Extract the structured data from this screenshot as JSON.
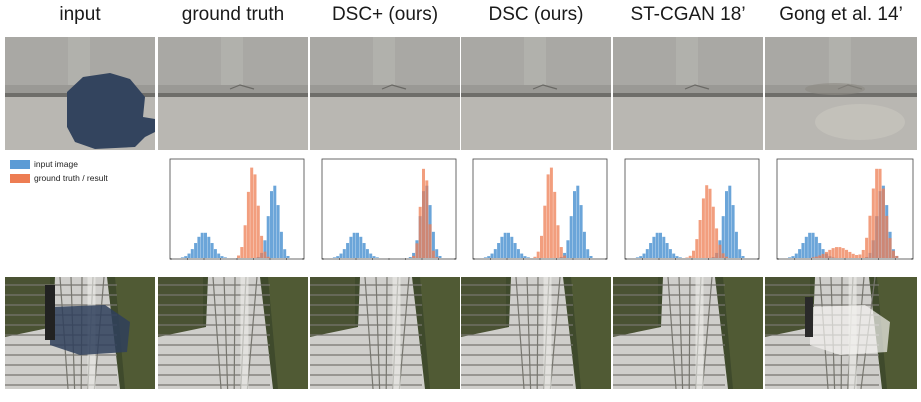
{
  "headers": [
    "input",
    "ground truth",
    "DSC+ (ours)",
    "DSC (ours)",
    "ST-CGAN 18’",
    "Gong et al. 14’"
  ],
  "legend": {
    "input_label": "input image",
    "result_label": "ground truth / result",
    "input_color": "#5b9bd5",
    "result_color": "#ed7d53"
  },
  "colors": {
    "pavement": "#b5b4b0",
    "curb": "#8f8e8a",
    "shadow": "#2e3f59",
    "grass": "#3d4a2a",
    "tile": "#d9d9d6"
  }
}
